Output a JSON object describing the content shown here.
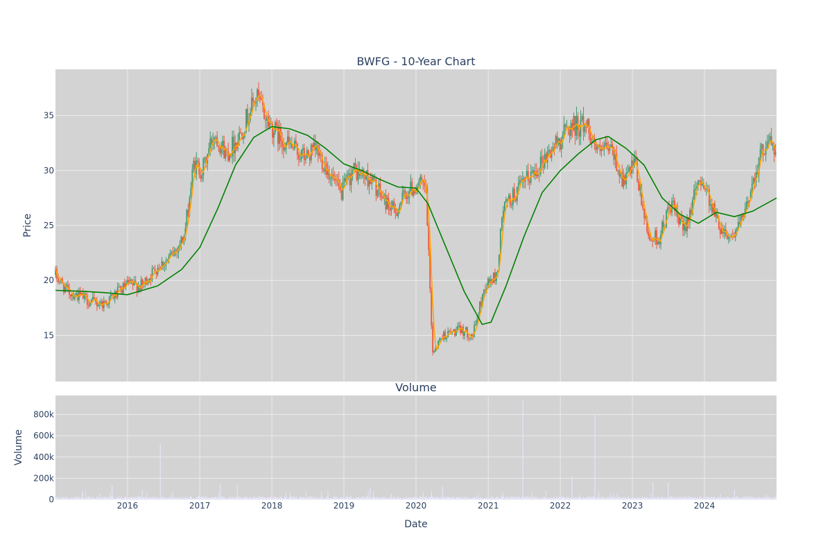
{
  "chart_data": [
    {
      "type": "candlestick",
      "title": "BWFG - 10-Year Chart",
      "xlabel": "",
      "ylabel": "Price",
      "x_range": [
        "2015-01-01",
        "2024-12-31"
      ],
      "ylim": [
        10.8,
        39.2
      ],
      "y_ticks": [
        15,
        20,
        25,
        30,
        35
      ],
      "grid": true,
      "background": "#d3d3d3",
      "colors": {
        "increasing": "#3d9970",
        "decreasing": "#ef553b",
        "ma_short": "#ffa500",
        "ma_long": "#008000"
      },
      "price_path": [
        [
          "2015-01-01",
          20.5
        ],
        [
          "2015-03-01",
          19.0
        ],
        [
          "2015-05-01",
          18.6
        ],
        [
          "2015-07-01",
          18.0
        ],
        [
          "2015-09-01",
          17.9
        ],
        [
          "2015-11-01",
          18.7
        ],
        [
          "2016-01-01",
          19.6
        ],
        [
          "2016-03-15",
          19.5
        ],
        [
          "2016-06-01",
          21.3
        ],
        [
          "2016-08-01",
          22.0
        ],
        [
          "2016-10-15",
          24.0
        ],
        [
          "2016-12-01",
          30.5
        ],
        [
          "2017-01-15",
          30.0
        ],
        [
          "2017-03-15",
          33.5
        ],
        [
          "2017-05-15",
          31.5
        ],
        [
          "2017-07-15",
          33.0
        ],
        [
          "2017-10-15",
          36.8
        ],
        [
          "2017-12-01",
          34.8
        ],
        [
          "2018-02-01",
          33.2
        ],
        [
          "2018-04-15",
          32.0
        ],
        [
          "2018-06-15",
          31.2
        ],
        [
          "2018-08-15",
          31.8
        ],
        [
          "2018-10-15",
          30.0
        ],
        [
          "2018-12-15",
          27.8
        ],
        [
          "2019-02-15",
          30.0
        ],
        [
          "2019-05-15",
          29.2
        ],
        [
          "2019-07-15",
          27.5
        ],
        [
          "2019-09-15",
          26.2
        ],
        [
          "2019-11-15",
          28.0
        ],
        [
          "2020-01-15",
          28.8
        ],
        [
          "2020-02-20",
          28.2
        ],
        [
          "2020-03-25",
          13.5
        ],
        [
          "2020-05-15",
          15.0
        ],
        [
          "2020-08-15",
          15.5
        ],
        [
          "2020-10-15",
          15.0
        ],
        [
          "2020-12-15",
          19.5
        ],
        [
          "2021-02-15",
          20.5
        ],
        [
          "2021-03-15",
          26.5
        ],
        [
          "2021-06-15",
          28.5
        ],
        [
          "2021-09-15",
          30.5
        ],
        [
          "2021-12-15",
          32.5
        ],
        [
          "2022-02-15",
          34.0
        ],
        [
          "2022-05-15",
          34.2
        ],
        [
          "2022-07-15",
          31.5
        ],
        [
          "2022-09-15",
          32.0
        ],
        [
          "2022-11-15",
          29.0
        ],
        [
          "2023-01-15",
          30.5
        ],
        [
          "2023-03-20",
          24.0
        ],
        [
          "2023-05-15",
          23.8
        ],
        [
          "2023-07-15",
          27.0
        ],
        [
          "2023-09-15",
          24.5
        ],
        [
          "2023-12-15",
          29.5
        ],
        [
          "2024-03-15",
          25.0
        ],
        [
          "2024-05-15",
          24.0
        ],
        [
          "2024-07-15",
          25.5
        ],
        [
          "2024-09-15",
          30.0
        ],
        [
          "2024-11-15",
          33.0
        ],
        [
          "2024-12-31",
          31.5
        ]
      ],
      "ma_long": [
        [
          "2015-01-01",
          19.1
        ],
        [
          "2015-06-01",
          19.0
        ],
        [
          "2015-09-01",
          18.9
        ],
        [
          "2016-01-01",
          18.7
        ],
        [
          "2016-06-01",
          19.5
        ],
        [
          "2016-10-01",
          21.0
        ],
        [
          "2017-01-01",
          23.0
        ],
        [
          "2017-04-01",
          26.5
        ],
        [
          "2017-07-01",
          30.5
        ],
        [
          "2017-10-01",
          33.0
        ],
        [
          "2018-01-01",
          34.0
        ],
        [
          "2018-04-01",
          33.8
        ],
        [
          "2018-07-01",
          33.2
        ],
        [
          "2018-10-01",
          32.0
        ],
        [
          "2019-01-01",
          30.6
        ],
        [
          "2019-04-01",
          30.0
        ],
        [
          "2019-07-01",
          29.2
        ],
        [
          "2019-10-01",
          28.5
        ],
        [
          "2020-01-01",
          28.4
        ],
        [
          "2020-03-01",
          27.0
        ],
        [
          "2020-06-01",
          23.0
        ],
        [
          "2020-09-01",
          19.0
        ],
        [
          "2020-12-01",
          16.0
        ],
        [
          "2021-01-15",
          16.2
        ],
        [
          "2021-04-01",
          19.5
        ],
        [
          "2021-07-01",
          24.0
        ],
        [
          "2021-10-01",
          28.0
        ],
        [
          "2022-01-01",
          30.0
        ],
        [
          "2022-04-01",
          31.5
        ],
        [
          "2022-07-01",
          32.8
        ],
        [
          "2022-09-01",
          33.1
        ],
        [
          "2022-12-01",
          32.0
        ],
        [
          "2023-03-01",
          30.5
        ],
        [
          "2023-06-01",
          27.5
        ],
        [
          "2023-09-01",
          26.0
        ],
        [
          "2023-12-01",
          25.2
        ],
        [
          "2024-03-01",
          26.2
        ],
        [
          "2024-06-01",
          25.8
        ],
        [
          "2024-09-01",
          26.3
        ],
        [
          "2024-12-31",
          27.5
        ]
      ]
    },
    {
      "type": "bar",
      "title": "Volume",
      "xlabel": "Date",
      "ylabel": "Volume",
      "ylim": [
        0,
        980000
      ],
      "y_ticks": [
        0,
        200000,
        400000,
        600000,
        800000
      ],
      "y_tick_labels": [
        "0",
        "200k",
        "400k",
        "600k",
        "800k"
      ],
      "x_ticks": [
        "2016",
        "2017",
        "2018",
        "2019",
        "2020",
        "2021",
        "2022",
        "2023",
        "2024"
      ],
      "background": "#d3d3d3",
      "bar_color": "#e6e6fa",
      "baseline_level": 15000,
      "spikes": [
        [
          "2015-10-15",
          130000
        ],
        [
          "2016-03-15",
          90000
        ],
        [
          "2016-06-15",
          520000
        ],
        [
          "2017-04-15",
          150000
        ],
        [
          "2017-07-10",
          140000
        ],
        [
          "2018-03-15",
          60000
        ],
        [
          "2019-05-15",
          110000
        ],
        [
          "2020-03-20",
          80000
        ],
        [
          "2020-05-15",
          120000
        ],
        [
          "2021-03-15",
          70000
        ],
        [
          "2021-06-25",
          930000
        ],
        [
          "2022-03-01",
          220000
        ],
        [
          "2022-06-25",
          800000
        ],
        [
          "2023-04-15",
          160000
        ],
        [
          "2023-07-01",
          160000
        ],
        [
          "2024-06-01",
          90000
        ]
      ]
    }
  ]
}
